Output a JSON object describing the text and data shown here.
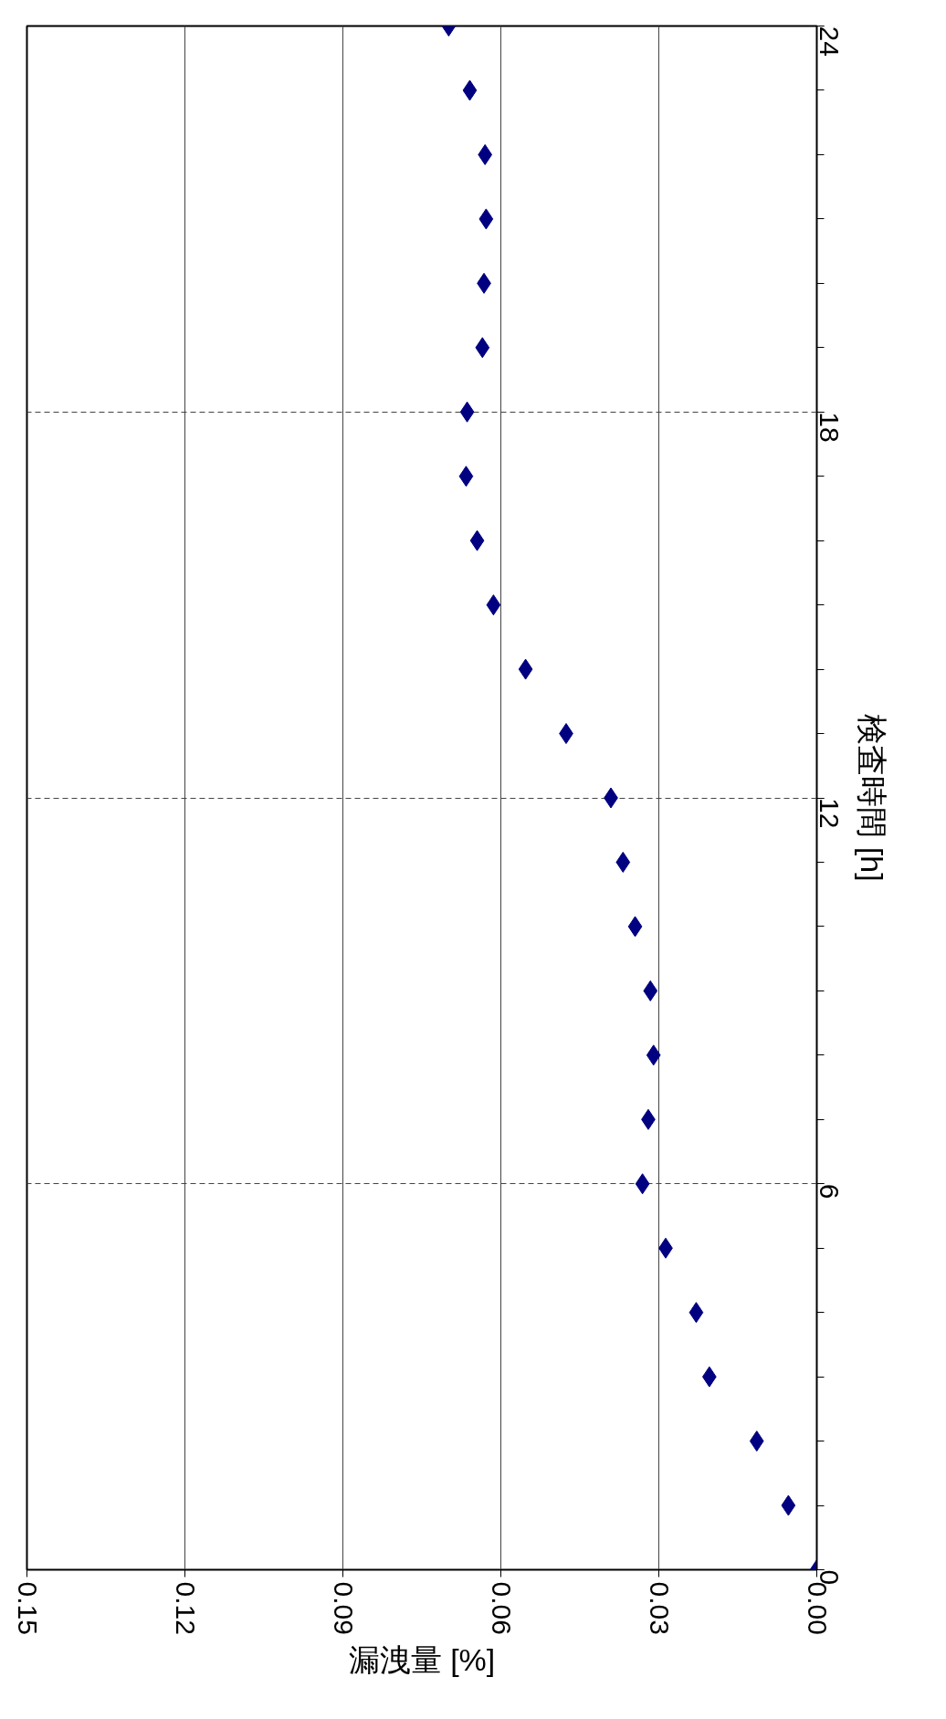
{
  "chart_data": {
    "type": "scatter",
    "xlabel": "漏洩量 [%]",
    "ylabel": "検査時間 [h]",
    "x": [
      0,
      0.0054,
      0.0114,
      0.0204,
      0.0229,
      0.0287,
      0.0331,
      0.032,
      0.031,
      0.0316,
      0.0345,
      0.0368,
      0.0391,
      0.0476,
      0.0553,
      0.0614,
      0.0645,
      0.0666,
      0.0664,
      0.0635,
      0.0632,
      0.0628,
      0.063,
      0.0659,
      0.0699
    ],
    "series": [
      {
        "color": "#000080",
        "values": [
          0,
          1,
          2,
          3,
          4,
          5,
          6,
          7,
          8,
          9,
          10,
          11,
          12,
          13,
          14,
          15,
          16,
          17,
          18,
          19,
          20,
          21,
          22,
          23,
          24
        ]
      }
    ],
    "xlim": [
      0.15,
      0
    ],
    "xticks": [
      {
        "value": 0,
        "label": "0.00"
      },
      {
        "value": 0.03,
        "label": "0.03"
      },
      {
        "value": 0.06,
        "label": "0.06"
      },
      {
        "value": 0.09,
        "label": "0.09"
      },
      {
        "value": 0.12,
        "label": "0.12"
      },
      {
        "value": 0.15,
        "label": "0.15"
      }
    ],
    "ylim": [
      0,
      24
    ],
    "yticks": [
      0,
      6,
      12,
      18,
      24
    ],
    "grid": true,
    "marker": "diamond"
  }
}
